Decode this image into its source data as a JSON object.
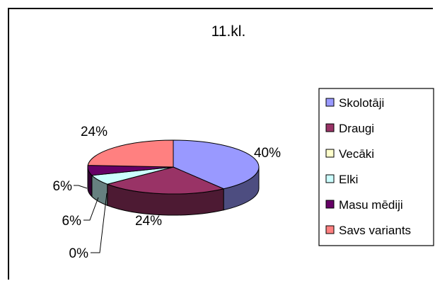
{
  "chart_data": {
    "type": "pie",
    "style": "3d-pie",
    "title": "11.kl.",
    "legend_position": "right",
    "slices": [
      {
        "name": "Skolotāji",
        "value": 40,
        "label": "40%",
        "color": "#9999ff"
      },
      {
        "name": "Draugi",
        "value": 24,
        "label": "24%",
        "color": "#993366"
      },
      {
        "name": "Vecāki",
        "value": 0,
        "label": "0%",
        "color": "#ffffcc"
      },
      {
        "name": "Elki",
        "value": 6,
        "label": "6%",
        "color": "#ccffff"
      },
      {
        "name": "Masu mēdiji",
        "value": 6,
        "label": "6%",
        "color": "#660066"
      },
      {
        "name": "Savs variants",
        "value": 24,
        "label": "24%",
        "color": "#ff8080"
      }
    ]
  }
}
